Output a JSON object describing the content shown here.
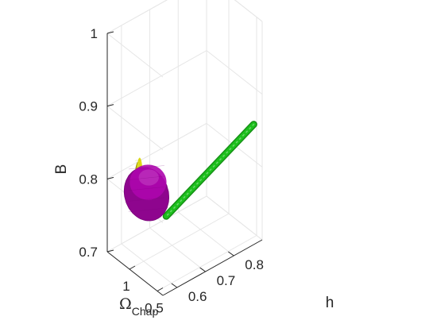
{
  "chart_data": {
    "type": "3d-surface",
    "axes": {
      "x": {
        "label_main": "Ω",
        "label_sub": "Chap",
        "range": [
          0.4,
          1.4
        ],
        "ticks": [
          1,
          0.5
        ]
      },
      "y": {
        "label": "h",
        "range": [
          0.55,
          0.9
        ],
        "ticks": [
          0.6,
          0.7,
          0.8
        ]
      },
      "z": {
        "label": "B",
        "range": [
          0.7,
          1.0
        ],
        "ticks": [
          0.7,
          0.8,
          0.9,
          1
        ]
      }
    },
    "grid": true,
    "surfaces": [
      {
        "shape": "ellipsoid",
        "color": "#ad06ad",
        "center": {
          "x": 1.0,
          "y": 0.61,
          "z": 0.79
        },
        "semi_axes": {
          "x": 0.29,
          "y": 0.055,
          "z": 0.03
        }
      },
      {
        "shape": "ellipsoid",
        "color": "#d9d600",
        "center": {
          "x": 1.05,
          "y": 0.59,
          "z": 0.8
        },
        "semi_axes": {
          "x": 0.04,
          "y": 0.01,
          "z": 0.035
        }
      },
      {
        "shape": "tube",
        "color": "#1dc01d",
        "from": {
          "x": 0.85,
          "y": 0.65,
          "z": 0.76
        },
        "to": {
          "x": 0.45,
          "y": 0.88,
          "z": 0.86
        }
      }
    ]
  }
}
